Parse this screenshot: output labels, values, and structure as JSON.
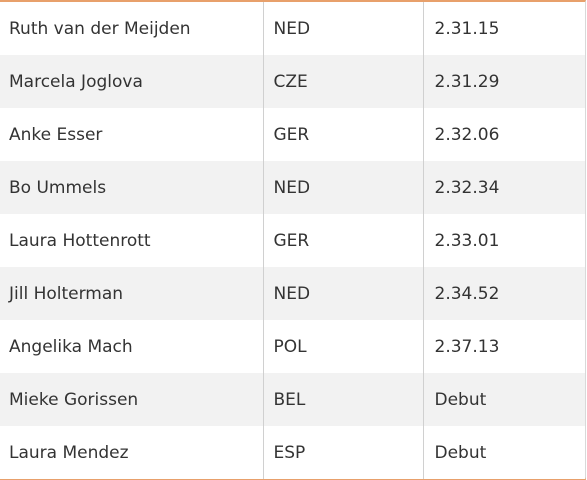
{
  "table": {
    "rows": [
      {
        "name": "Ruth van der Meijden",
        "country": "NED",
        "time": "2.31.15"
      },
      {
        "name": "Marcela Joglova",
        "country": "CZE",
        "time": "2.31.29"
      },
      {
        "name": "Anke Esser",
        "country": "GER",
        "time": "2.32.06"
      },
      {
        "name": "Bo Ummels",
        "country": "NED",
        "time": "2.32.34"
      },
      {
        "name": "Laura Hottenrott",
        "country": "GER",
        "time": "2.33.01"
      },
      {
        "name": "Jill Holterman",
        "country": "NED",
        "time": "2.34.52"
      },
      {
        "name": "Angelika Mach",
        "country": "POL",
        "time": "2.37.13"
      },
      {
        "name": "Mieke Gorissen",
        "country": "BEL",
        "time": "Debut"
      },
      {
        "name": "Laura Mendez",
        "country": "ESP",
        "time": "Debut"
      }
    ]
  },
  "colors": {
    "accent": "#e8a06b",
    "row_alt": "#f2f2f2",
    "text": "#333333",
    "divider": "#d0d0d0"
  }
}
